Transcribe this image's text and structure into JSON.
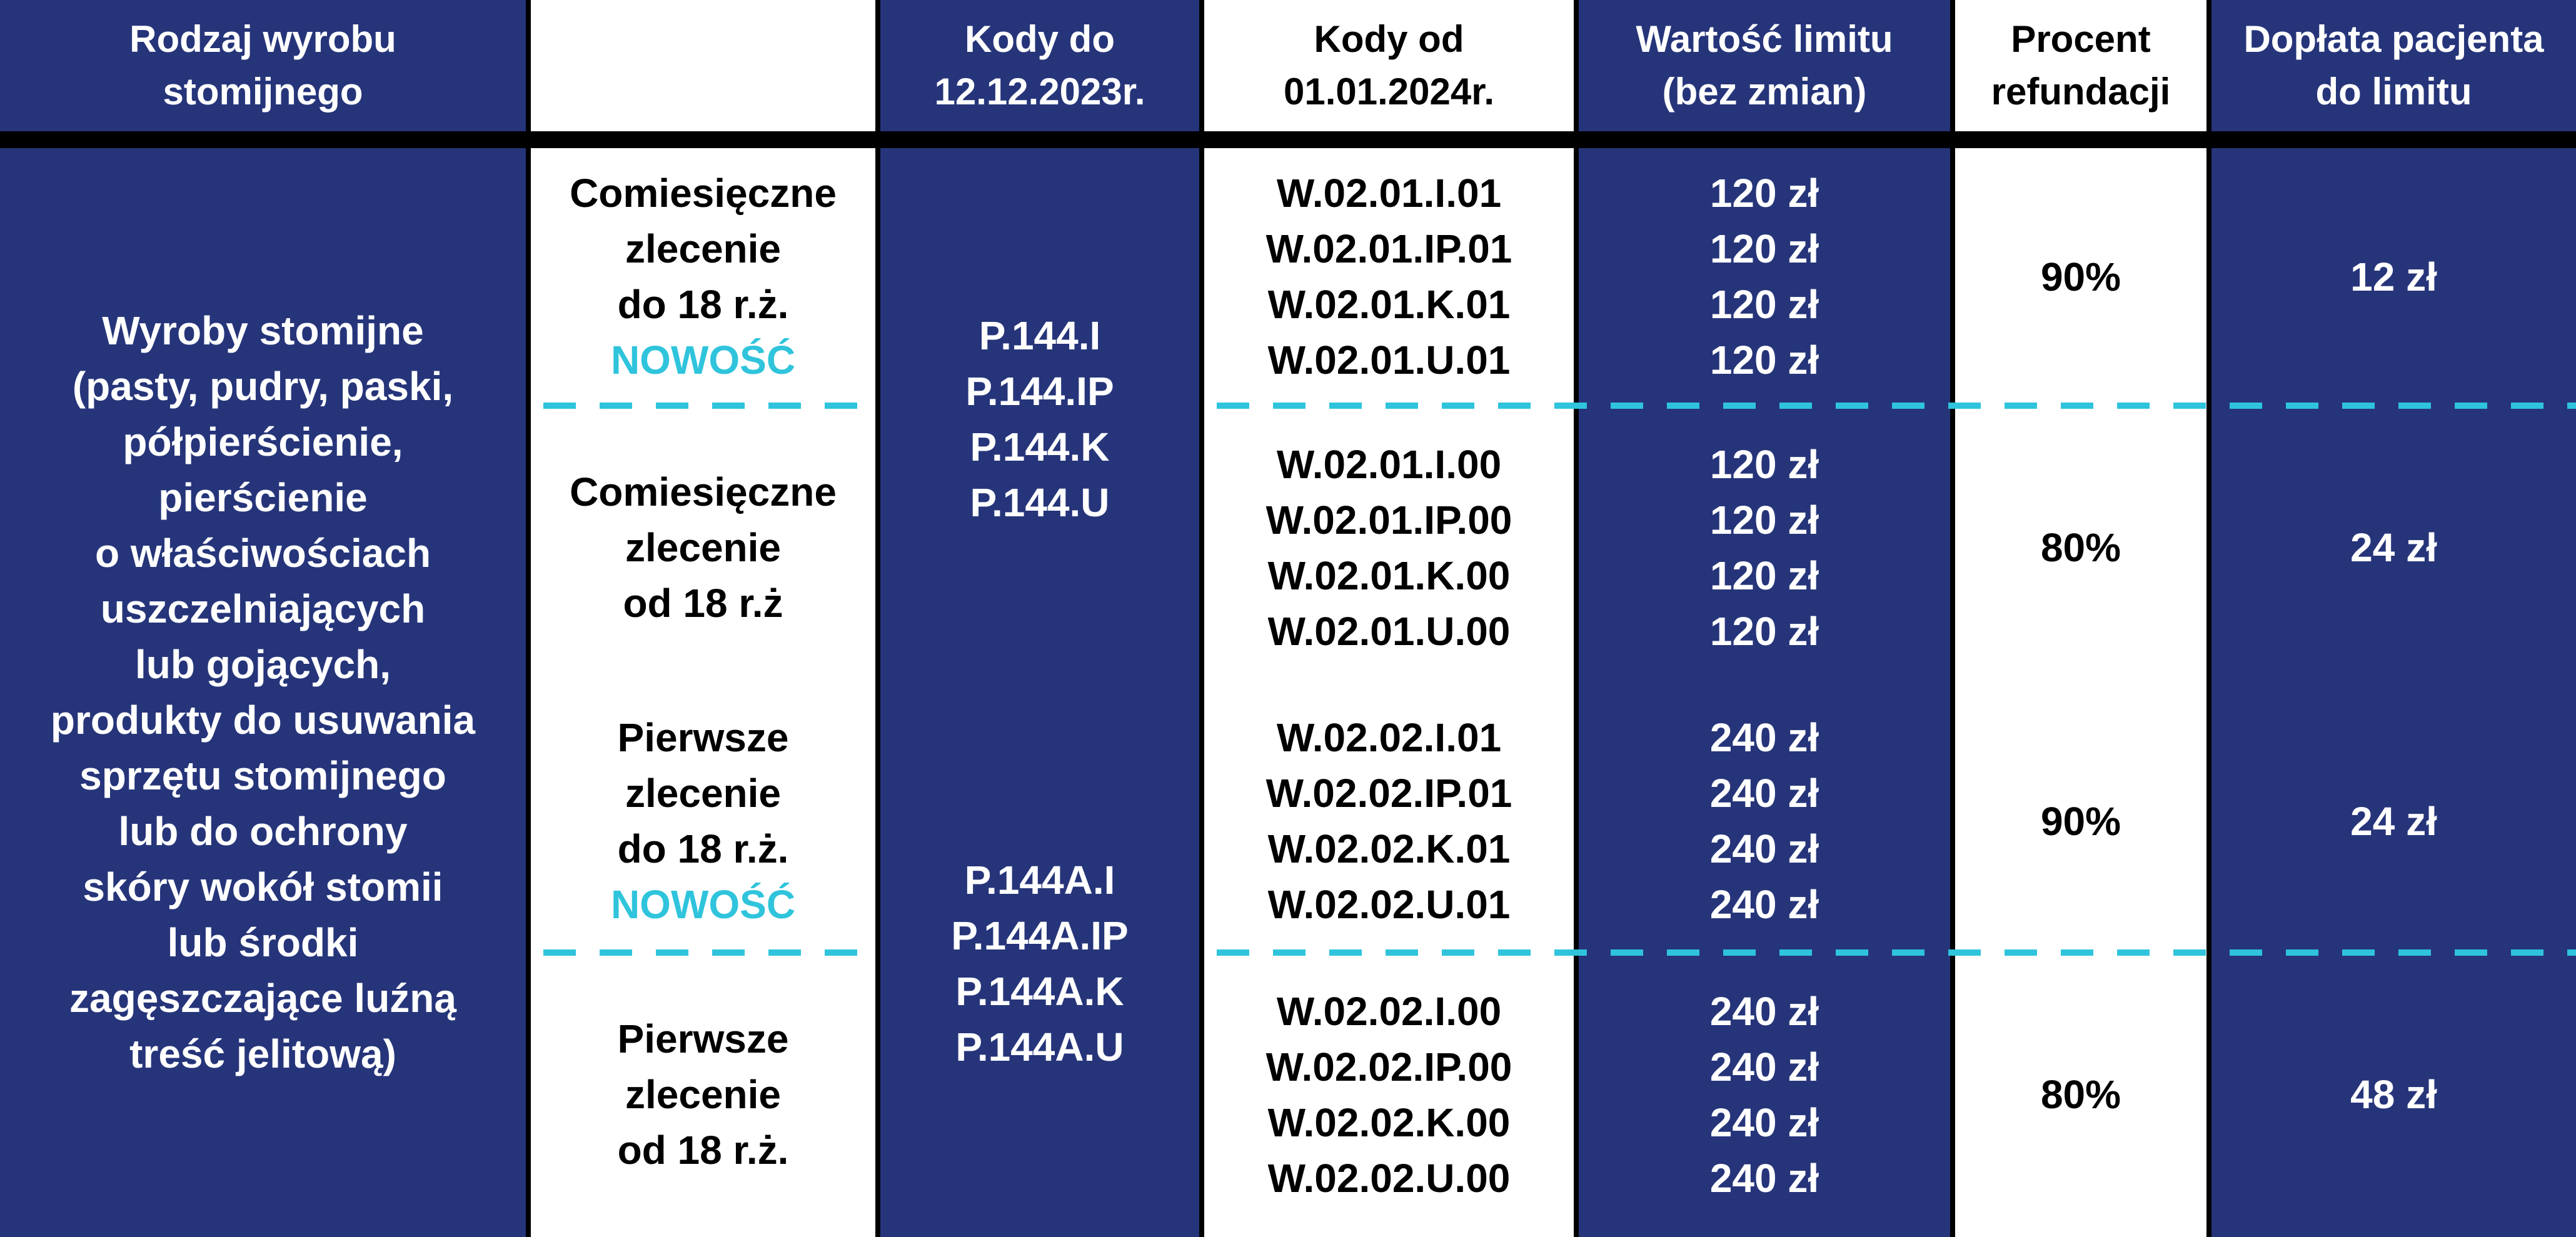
{
  "colors": {
    "navy": "#26357a",
    "accent": "#2fc4dc",
    "divider": "#000000"
  },
  "header": {
    "col1": [
      "Rodzaj wyrobu",
      "stomijnego"
    ],
    "col2": [],
    "col3": [
      "Kody do",
      "12.12.2023r."
    ],
    "col4": [
      "Kody od",
      "01.01.2024r."
    ],
    "col5": [
      "Wartość limitu",
      "(bez zmian)"
    ],
    "col6": [
      "Procent",
      "refundacji"
    ],
    "col7": [
      "Dopłata pacjenta",
      "do limitu"
    ]
  },
  "product": [
    "Wyroby stomijne",
    "(pasty, pudry, paski,",
    "półpierścienie,",
    "pierścienie",
    "o właściwościach",
    "uszczelniających",
    "lub gojących,",
    "produkty do usuwania",
    "sprzętu stomijnego",
    "lub do ochrony",
    "skóry wokół stomii",
    "lub środki",
    "zagęszczające luźną",
    "treść jelitową)"
  ],
  "groups": [
    {
      "old_codes": [
        "P.144.I",
        "P.144.IP",
        "P.144.K",
        "P.144.U"
      ]
    },
    {
      "old_codes": [
        "P.144A.I",
        "P.144A.IP",
        "P.144A.K",
        "P.144A.U"
      ]
    }
  ],
  "rows": [
    {
      "type": [
        "Comiesięczne",
        "zlecenie",
        "do 18 r.ż."
      ],
      "badge": "NOWOŚĆ",
      "codes": [
        "W.02.01.I.01",
        "W.02.01.IP.01",
        "W.02.01.K.01",
        "W.02.01.U.01"
      ],
      "limits": [
        "120 zł",
        "120 zł",
        "120 zł",
        "120 zł"
      ],
      "refund": "90%",
      "copay": "12 zł"
    },
    {
      "type": [
        "Comiesięczne",
        "zlecenie",
        "od 18 r.ż"
      ],
      "badge": "",
      "codes": [
        "W.02.01.I.00",
        "W.02.01.IP.00",
        "W.02.01.K.00",
        "W.02.01.U.00"
      ],
      "limits": [
        "120 zł",
        "120 zł",
        "120 zł",
        "120 zł"
      ],
      "refund": "80%",
      "copay": "24 zł"
    },
    {
      "type": [
        "Pierwsze",
        "zlecenie",
        "do 18 r.ż."
      ],
      "badge": "NOWOŚĆ",
      "codes": [
        "W.02.02.I.01",
        "W.02.02.IP.01",
        "W.02.02.K.01",
        "W.02.02.U.01"
      ],
      "limits": [
        "240 zł",
        "240 zł",
        "240 zł",
        "240 zł"
      ],
      "refund": "90%",
      "copay": "24 zł"
    },
    {
      "type": [
        "Pierwsze",
        "zlecenie",
        "od 18 r.ż."
      ],
      "badge": "",
      "codes": [
        "W.02.02.I.00",
        "W.02.02.IP.00",
        "W.02.02.K.00",
        "W.02.02.U.00"
      ],
      "limits": [
        "240 zł",
        "240 zł",
        "240 zł",
        "240 zł"
      ],
      "refund": "80%",
      "copay": "48 zł"
    }
  ]
}
